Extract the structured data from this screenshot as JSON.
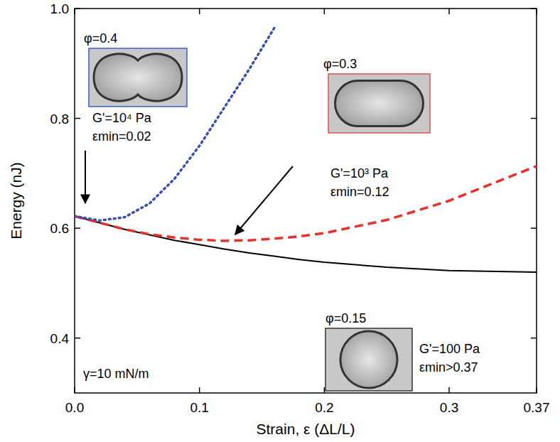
{
  "chart_data": {
    "type": "line",
    "xlabel": "Strain, ε (ΔL/L)",
    "ylabel": "Energy (nJ)",
    "x": [
      0,
      0.02,
      0.04,
      0.06,
      0.08,
      0.1,
      0.12,
      0.14,
      0.16,
      0.18,
      0.2,
      0.25,
      0.3,
      0.37
    ],
    "series": [
      {
        "color": "#3a4fb5",
        "line_style": "dotted",
        "values": [
          0.622,
          0.614,
          0.62,
          0.645,
          0.69,
          0.75,
          0.82,
          0.89,
          0.965,
          null,
          null,
          null,
          null,
          null
        ]
      },
      {
        "color": "#e8302a",
        "line_style": "dashed",
        "values": [
          0.622,
          0.61,
          0.598,
          0.589,
          0.583,
          0.579,
          0.577,
          0.578,
          0.581,
          0.585,
          0.591,
          0.615,
          0.65,
          0.713
        ]
      },
      {
        "color": "#000000",
        "line_style": "solid",
        "values": [
          0.622,
          0.61,
          0.598,
          0.588,
          0.578,
          0.57,
          0.562,
          0.555,
          0.549,
          0.543,
          0.538,
          0.529,
          0.523,
          0.52
        ]
      }
    ],
    "xlim": [
      0,
      0.37
    ],
    "ylim": [
      0.3,
      1.0
    ],
    "xticks": [
      {
        "value": 0,
        "label": "0.0"
      },
      0.1,
      0.2,
      0.3,
      0.37
    ],
    "yticks": [
      0.4,
      0.6,
      0.8,
      {
        "value": 1.0,
        "label": "1.0"
      }
    ],
    "grid": false,
    "annotations": [
      {
        "lines": [
          "φ=0.4",
          "G'=10⁴ Pa",
          "εmin=0.02"
        ]
      },
      {
        "lines": [
          "φ=0.3",
          "G'=10³ Pa",
          "εmin=0.12"
        ]
      },
      {
        "lines": [
          "φ=0.15",
          "G'=100 Pa",
          "εmin>0.37"
        ]
      },
      {
        "lines": [
          "γ=10 mN/m"
        ]
      }
    ]
  }
}
